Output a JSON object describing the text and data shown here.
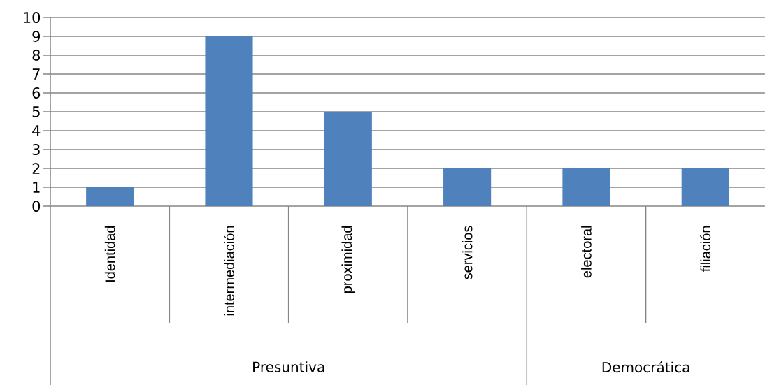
{
  "chart_data": {
    "type": "bar",
    "categories": [
      "Identidad",
      "intermediación",
      "proximidad",
      "servicios",
      "electoral",
      "filiación"
    ],
    "values": [
      1,
      9,
      5,
      2,
      2,
      2
    ],
    "color": "#4f81bd",
    "ylim": [
      0,
      10
    ],
    "yticks": [
      0,
      1,
      2,
      3,
      4,
      5,
      6,
      7,
      8,
      9,
      10
    ],
    "grid": "y",
    "annotations": [
      "Presuntiva",
      "Democrática"
    ]
  }
}
